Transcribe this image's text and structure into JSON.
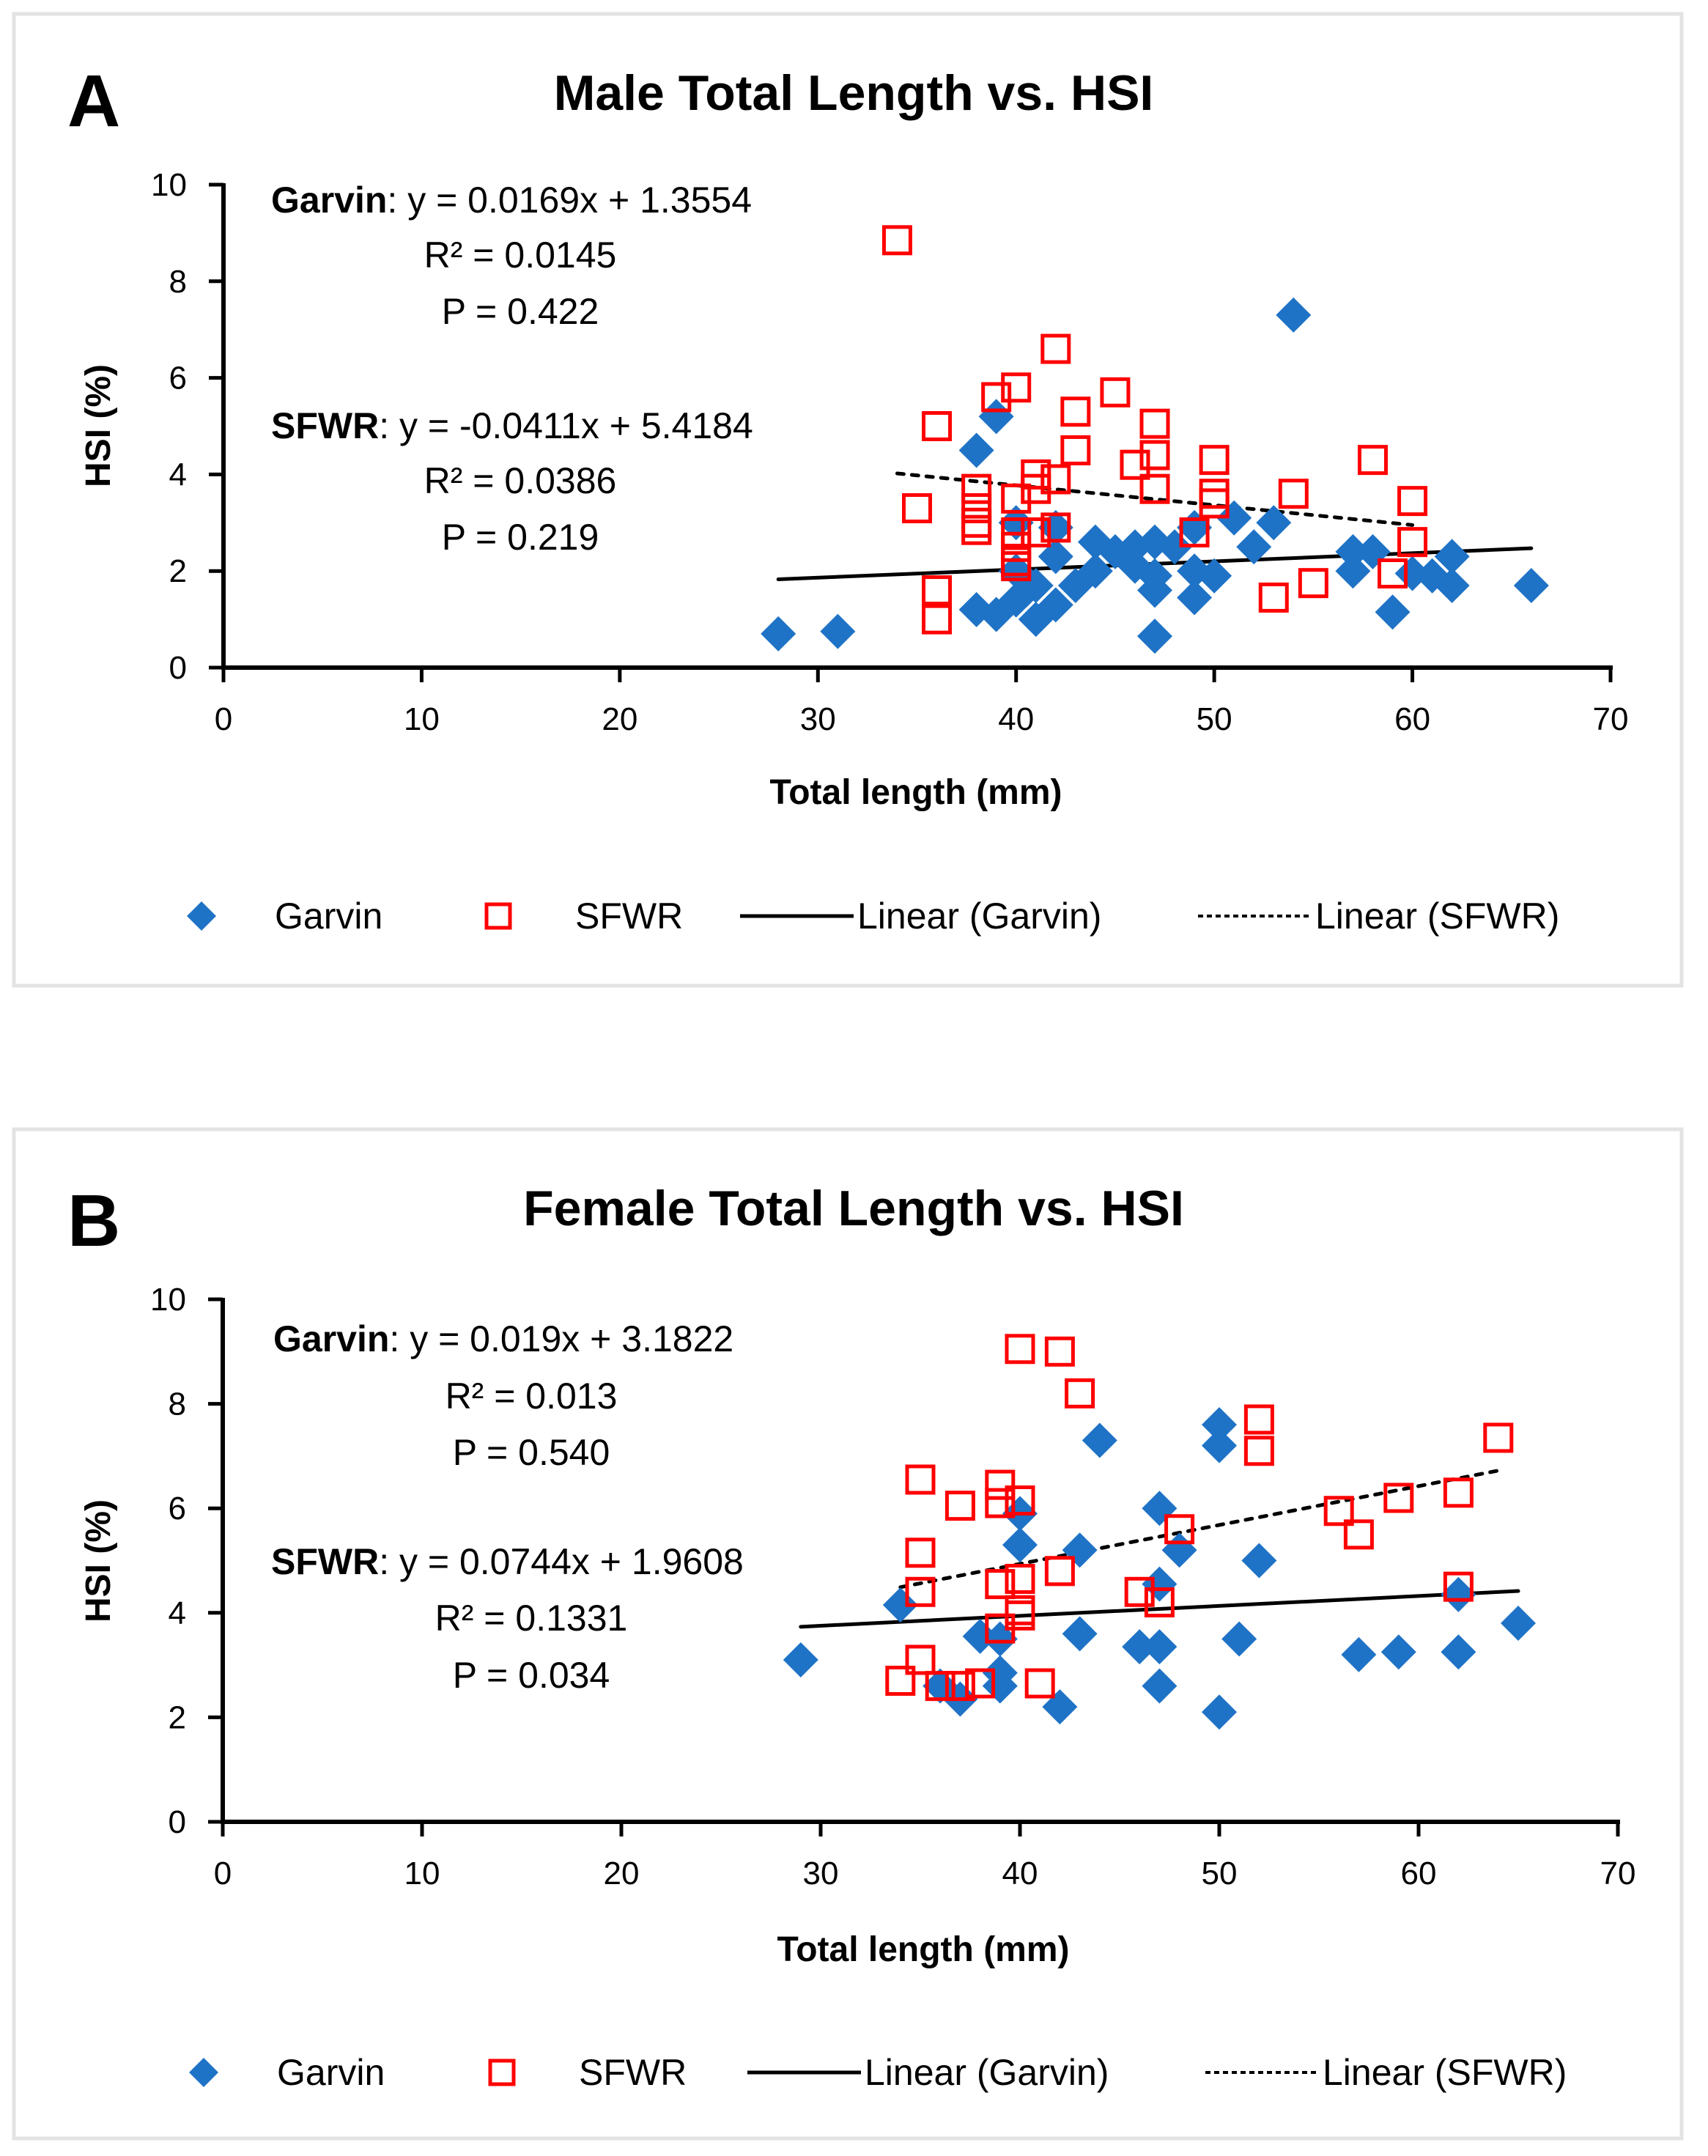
{
  "colors": {
    "garvin": "#1f73c6",
    "sfwr": "#ff0000",
    "trend": "#000000",
    "frame": "#e3e3e3"
  },
  "chart_data": [
    {
      "type": "scatter",
      "panel": "A",
      "title": "Male Total Length vs. HSI",
      "xlabel": "Total length (mm)",
      "ylabel": "HSI (%)",
      "xlim": [
        0,
        70
      ],
      "ylim": [
        0,
        10
      ],
      "xticks": [
        0,
        10,
        20,
        30,
        40,
        50,
        60,
        70
      ],
      "yticks": [
        0,
        2,
        4,
        6,
        8,
        10
      ],
      "grid": false,
      "legend_position": "bottom",
      "legend": [
        "Garvin",
        "SFWR",
        "Linear (Garvin)",
        "Linear (SFWR)"
      ],
      "annotations": {
        "garvin": {
          "label": "Garvin",
          "equation": ": y = 0.0169x + 1.3554",
          "r2": "R² = 0.0145",
          "p": "P = 0.422"
        },
        "sfwr": {
          "label": "SFWR",
          "equation": ": y = -0.0411x + 5.4184",
          "r2": "R² = 0.0386",
          "p": "P = 0.219"
        }
      },
      "series": [
        {
          "name": "Garvin",
          "marker": "diamond",
          "points": [
            [
              28,
              0.7
            ],
            [
              31,
              0.75
            ],
            [
              38,
              4.5
            ],
            [
              38,
              1.2
            ],
            [
              39,
              5.2
            ],
            [
              39,
              1.1
            ],
            [
              40,
              3.0
            ],
            [
              40,
              2.0
            ],
            [
              40,
              1.4
            ],
            [
              40.5,
              1.6
            ],
            [
              41,
              1.0
            ],
            [
              41,
              1.7
            ],
            [
              42,
              2.9
            ],
            [
              42,
              2.3
            ],
            [
              42,
              1.3
            ],
            [
              43,
              1.7
            ],
            [
              44,
              2.6
            ],
            [
              44,
              2.0
            ],
            [
              45,
              2.4
            ],
            [
              46,
              2.5
            ],
            [
              46,
              2.1
            ],
            [
              47,
              2.6
            ],
            [
              47,
              1.9
            ],
            [
              47,
              1.6
            ],
            [
              47,
              0.65
            ],
            [
              48,
              2.5
            ],
            [
              49,
              2.9
            ],
            [
              49,
              2.0
            ],
            [
              49,
              1.45
            ],
            [
              50,
              1.9
            ],
            [
              51,
              3.1
            ],
            [
              52,
              2.5
            ],
            [
              53,
              3.0
            ],
            [
              54,
              7.3
            ],
            [
              57,
              2.4
            ],
            [
              57,
              2.0
            ],
            [
              58,
              2.4
            ],
            [
              59,
              1.15
            ],
            [
              60,
              1.95
            ],
            [
              61,
              1.9
            ],
            [
              62,
              2.3
            ],
            [
              62,
              1.7
            ],
            [
              66,
              1.7
            ]
          ]
        },
        {
          "name": "SFWR",
          "marker": "square",
          "points": [
            [
              34,
              8.85
            ],
            [
              35,
              3.3
            ],
            [
              36,
              5.0
            ],
            [
              36,
              1.6
            ],
            [
              36,
              1.0
            ],
            [
              38,
              3.7
            ],
            [
              38,
              3.3
            ],
            [
              38,
              3.0
            ],
            [
              38,
              2.85
            ],
            [
              39,
              5.6
            ],
            [
              40,
              5.8
            ],
            [
              40,
              3.5
            ],
            [
              40,
              2.8
            ],
            [
              40,
              2.5
            ],
            [
              40,
              2.2
            ],
            [
              40,
              2.1
            ],
            [
              41,
              4.0
            ],
            [
              41,
              3.7
            ],
            [
              41,
              2.8
            ],
            [
              42,
              6.6
            ],
            [
              42,
              3.9
            ],
            [
              42,
              2.9
            ],
            [
              43,
              5.3
            ],
            [
              43,
              4.5
            ],
            [
              45,
              5.7
            ],
            [
              46,
              4.2
            ],
            [
              47,
              5.05
            ],
            [
              47,
              4.4
            ],
            [
              47,
              3.7
            ],
            [
              49,
              2.8
            ],
            [
              50,
              4.3
            ],
            [
              50,
              3.6
            ],
            [
              50,
              3.4
            ],
            [
              53,
              1.45
            ],
            [
              54,
              3.6
            ],
            [
              55,
              1.75
            ],
            [
              58,
              4.3
            ],
            [
              59,
              1.95
            ],
            [
              60,
              3.45
            ],
            [
              60,
              2.6
            ]
          ]
        }
      ],
      "trendlines": [
        {
          "name": "Linear (Garvin)",
          "slope": 0.0169,
          "intercept": 1.3554,
          "x_range": [
            28,
            66
          ],
          "style": "solid"
        },
        {
          "name": "Linear (SFWR)",
          "slope": -0.0411,
          "intercept": 5.4184,
          "x_range": [
            34,
            60
          ],
          "style": "dashed"
        }
      ]
    },
    {
      "type": "scatter",
      "panel": "B",
      "title": "Female Total Length vs. HSI",
      "xlabel": "Total length (mm)",
      "ylabel": "HSI (%)",
      "xlim": [
        0,
        70
      ],
      "ylim": [
        0,
        10
      ],
      "xticks": [
        0,
        10,
        20,
        30,
        40,
        50,
        60,
        70
      ],
      "yticks": [
        0,
        2,
        4,
        6,
        8,
        10
      ],
      "grid": false,
      "legend_position": "bottom",
      "legend": [
        "Garvin",
        "SFWR",
        "Linear (Garvin)",
        "Linear (SFWR)"
      ],
      "annotations": {
        "garvin": {
          "label": "Garvin",
          "equation": ": y = 0.019x + 3.1822",
          "r2": "R² = 0.013",
          "p": "P = 0.540"
        },
        "sfwr": {
          "label": "SFWR",
          "equation": ": y = 0.0744x + 1.9608",
          "r2": "R² = 0.1331",
          "p": "P = 0.034"
        }
      },
      "series": [
        {
          "name": "Garvin",
          "marker": "diamond",
          "points": [
            [
              29,
              3.1
            ],
            [
              34,
              4.15
            ],
            [
              36,
              2.6
            ],
            [
              37,
              2.35
            ],
            [
              38,
              3.55
            ],
            [
              39,
              3.5
            ],
            [
              39,
              2.85
            ],
            [
              39,
              2.6
            ],
            [
              40,
              5.9
            ],
            [
              40,
              5.3
            ],
            [
              42,
              2.2
            ],
            [
              43,
              5.2
            ],
            [
              43,
              3.6
            ],
            [
              44,
              7.3
            ],
            [
              46,
              3.35
            ],
            [
              47,
              6.0
            ],
            [
              47,
              4.55
            ],
            [
              47,
              3.35
            ],
            [
              47,
              2.6
            ],
            [
              48,
              5.2
            ],
            [
              50,
              7.6
            ],
            [
              50,
              7.2
            ],
            [
              50,
              2.1
            ],
            [
              51,
              3.5
            ],
            [
              52,
              5.0
            ],
            [
              57,
              3.2
            ],
            [
              59,
              3.25
            ],
            [
              62,
              4.35
            ],
            [
              62,
              3.25
            ],
            [
              65,
              3.8
            ]
          ]
        },
        {
          "name": "SFWR",
          "marker": "square",
          "points": [
            [
              34,
              2.7
            ],
            [
              35,
              6.55
            ],
            [
              35,
              5.15
            ],
            [
              35,
              4.4
            ],
            [
              35,
              3.1
            ],
            [
              36,
              2.6
            ],
            [
              37,
              6.05
            ],
            [
              37,
              2.6
            ],
            [
              38,
              2.65
            ],
            [
              39,
              6.45
            ],
            [
              39,
              6.1
            ],
            [
              39,
              4.55
            ],
            [
              39,
              3.7
            ],
            [
              40,
              9.05
            ],
            [
              40,
              6.15
            ],
            [
              40,
              4.65
            ],
            [
              40,
              4.05
            ],
            [
              40,
              3.95
            ],
            [
              41,
              2.65
            ],
            [
              42,
              9.0
            ],
            [
              42,
              4.8
            ],
            [
              43,
              8.2
            ],
            [
              46,
              4.4
            ],
            [
              47,
              4.2
            ],
            [
              48,
              5.6
            ],
            [
              52,
              7.7
            ],
            [
              52,
              7.1
            ],
            [
              56,
              5.95
            ],
            [
              57,
              5.5
            ],
            [
              59,
              6.2
            ],
            [
              62,
              6.3
            ],
            [
              62,
              4.5
            ],
            [
              64,
              7.35
            ]
          ]
        }
      ],
      "trendlines": [
        {
          "name": "Linear (Garvin)",
          "slope": 0.019,
          "intercept": 3.1822,
          "x_range": [
            29,
            65
          ],
          "style": "solid"
        },
        {
          "name": "Linear (SFWR)",
          "slope": 0.0744,
          "intercept": 1.9608,
          "x_range": [
            34,
            64
          ],
          "style": "dashed"
        }
      ]
    }
  ]
}
